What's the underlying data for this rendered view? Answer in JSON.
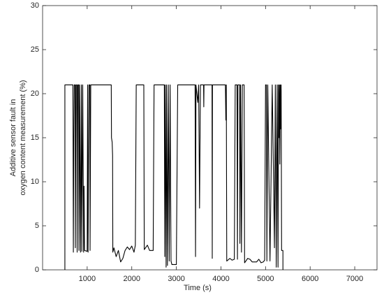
{
  "chart_data": {
    "type": "line",
    "xlabel": "Time (s)",
    "ylabel": [
      "Additive sensor fault in",
      "oxygen content measurement (%)"
    ],
    "xlim": [
      0,
      7500
    ],
    "ylim": [
      0,
      30
    ],
    "xticks": [
      1000,
      2000,
      3000,
      4000,
      5000,
      6000,
      7000
    ],
    "yticks": [
      0,
      5,
      10,
      15,
      20,
      25,
      30
    ],
    "color": "#000000",
    "x": [
      500,
      500,
      680,
      690,
      700,
      710,
      730,
      735,
      750,
      770,
      775,
      790,
      810,
      815,
      830,
      850,
      870,
      880,
      900,
      920,
      930,
      940,
      1000,
      1010,
      1020,
      1040,
      1060,
      1065,
      1080,
      1540,
      1545,
      1560,
      1570,
      1575,
      1600,
      1650,
      1700,
      1750,
      1800,
      1850,
      1900,
      1950,
      2000,
      2050,
      2080,
      2100,
      2270,
      2280,
      2350,
      2400,
      2480,
      2500,
      2730,
      2740,
      2750,
      2770,
      2780,
      2800,
      2820,
      2840,
      2860,
      2880,
      2900,
      3000,
      3030,
      3420,
      3430,
      3440,
      3480,
      3500,
      3520,
      3540,
      3610,
      3615,
      3620,
      3800,
      3805,
      3810,
      4100,
      4110,
      4120,
      4130,
      4200,
      4250,
      4300,
      4320,
      4360,
      4370,
      4380,
      4420,
      4425,
      4440,
      4460,
      4480,
      4520,
      4530,
      4600,
      4650,
      4700,
      4800,
      4850,
      4900,
      4950,
      4980,
      5000,
      5020,
      5030,
      5050,
      5100,
      5150,
      5200,
      5220,
      5240,
      5260,
      5280,
      5290,
      5300,
      5310,
      5320,
      5330,
      5340,
      5350,
      5360,
      5390,
      5390
    ],
    "values": [
      0,
      21,
      21,
      2,
      15,
      21,
      21,
      2.5,
      21,
      21,
      2,
      21,
      21,
      2.2,
      21,
      2,
      21,
      2.1,
      21,
      2,
      9.5,
      2.2,
      2.1,
      21,
      2,
      21,
      21,
      2.2,
      21,
      21,
      15,
      14.5,
      13,
      2,
      2.5,
      1.5,
      2.2,
      0.9,
      1.3,
      2.2,
      2.6,
      2.3,
      2.7,
      2,
      2.8,
      21,
      21,
      2.3,
      2.8,
      2.2,
      2.2,
      21,
      21,
      1.5,
      21,
      0.3,
      21,
      0.5,
      21,
      1,
      21,
      1,
      0.6,
      0.6,
      21,
      21,
      1.5,
      21,
      19,
      21,
      7,
      21,
      21,
      18.5,
      21,
      21,
      1.3,
      21,
      21,
      17,
      21,
      1,
      1.3,
      1.1,
      1.2,
      21,
      21,
      1.2,
      21,
      21,
      3,
      21,
      2,
      21,
      21,
      0.8,
      1.3,
      1.2,
      0.9,
      0.9,
      1.2,
      0.8,
      0.9,
      1.1,
      21,
      21,
      1,
      21,
      1,
      21,
      2.5,
      21,
      0.3,
      21,
      0.3,
      21,
      15,
      21,
      12,
      21,
      16,
      21,
      2.2,
      2.2,
      0
    ]
  }
}
